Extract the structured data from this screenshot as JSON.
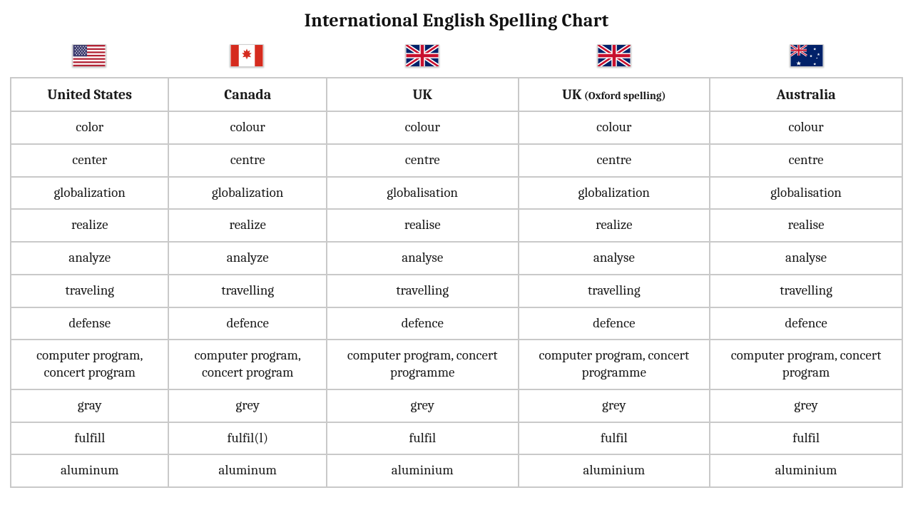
{
  "title": "International English Spelling Chart",
  "background_color": "#ffffff",
  "text_color": "#1a1a1a",
  "grid_color": "#c9c9c9",
  "font_family": "Cambria, Georgia, serif",
  "title_fontsize": 26,
  "header_fontsize": 20,
  "cell_fontsize": 19,
  "columns": [
    {
      "flag": "us",
      "header_main": "United States",
      "header_sub": "",
      "width_pct": 17.7
    },
    {
      "flag": "ca",
      "header_main": "Canada",
      "header_sub": "",
      "width_pct": 17.7
    },
    {
      "flag": "uk",
      "header_main": "UK",
      "header_sub": "",
      "width_pct": 21.5
    },
    {
      "flag": "uk",
      "header_main": "UK",
      "header_sub": " (Oxford spelling)",
      "width_pct": 21.5
    },
    {
      "flag": "au",
      "header_main": "Australia",
      "header_sub": "",
      "width_pct": 21.6
    }
  ],
  "rows": [
    [
      "color",
      "colour",
      "colour",
      "colour",
      "colour"
    ],
    [
      "center",
      "centre",
      "centre",
      "centre",
      "centre"
    ],
    [
      "globalization",
      "globalization",
      "globalisation",
      "globalization",
      "globalisation"
    ],
    [
      "realize",
      "realize",
      "realise",
      "realize",
      "realise"
    ],
    [
      "analyze",
      "analyze",
      "analyse",
      "analyse",
      "analyse"
    ],
    [
      "traveling",
      "travelling",
      "travelling",
      "travelling",
      "travelling"
    ],
    [
      "defense",
      "defence",
      "defence",
      "defence",
      "defence"
    ],
    [
      "computer program, concert program",
      "computer program, concert program",
      "computer program, concert programme",
      "computer program, concert programme",
      "computer program, concert program"
    ],
    [
      "gray",
      "grey",
      "grey",
      "grey",
      "grey"
    ],
    [
      "fulfill",
      "fulfil(l)",
      "fulfil",
      "fulfil",
      "fulfil"
    ],
    [
      "aluminum",
      "aluminum",
      "aluminium",
      "aluminium",
      "aluminium"
    ]
  ],
  "flag_svgs": {
    "us": "<svg viewBox='0 0 60 40' xmlns='http://www.w3.org/2000/svg'><rect width='60' height='40' fill='#b22234'/><g fill='#ffffff'><rect y='3.08' width='60' height='3.08'/><rect y='9.23' width='60' height='3.08'/><rect y='15.38' width='60' height='3.08'/><rect y='21.54' width='60' height='3.08'/><rect y='27.69' width='60' height='3.08'/><rect y='33.85' width='60' height='3.08'/></g><rect width='26' height='21.5' fill='#3c3b6e'/><g fill='#ffffff'><circle cx='4' cy='3' r='1'/><circle cx='9' cy='3' r='1'/><circle cx='14' cy='3' r='1'/><circle cx='19' cy='3' r='1'/><circle cx='24' cy='3' r='1'/><circle cx='6.5' cy='6' r='1'/><circle cx='11.5' cy='6' r='1'/><circle cx='16.5' cy='6' r='1'/><circle cx='21.5' cy='6' r='1'/><circle cx='4' cy='9' r='1'/><circle cx='9' cy='9' r='1'/><circle cx='14' cy='9' r='1'/><circle cx='19' cy='9' r='1'/><circle cx='24' cy='9' r='1'/><circle cx='6.5' cy='12' r='1'/><circle cx='11.5' cy='12' r='1'/><circle cx='16.5' cy='12' r='1'/><circle cx='21.5' cy='12' r='1'/><circle cx='4' cy='15' r='1'/><circle cx='9' cy='15' r='1'/><circle cx='14' cy='15' r='1'/><circle cx='19' cy='15' r='1'/><circle cx='24' cy='15' r='1'/><circle cx='6.5' cy='18' r='1'/><circle cx='11.5' cy='18' r='1'/><circle cx='16.5' cy='18' r='1'/><circle cx='21.5' cy='18' r='1'/></g></svg>",
    "ca": "<svg viewBox='0 0 60 40' xmlns='http://www.w3.org/2000/svg'><rect width='60' height='40' fill='#ffffff'/><rect width='15' height='40' fill='#d52b1e'/><rect x='45' width='15' height='40' fill='#d52b1e'/><path fill='#d52b1e' d='M30 7 L32 12 L36 10 L34.5 15 L39 15 L35 19 L38 23 L32 22 L31 27 L30 23 L29 27 L28 22 L22 23 L25 19 L21 15 L25.5 15 L24 10 L28 12 Z'/></svg>",
    "uk": "<svg viewBox='0 0 60 40' xmlns='http://www.w3.org/2000/svg'><rect width='60' height='40' fill='#012169'/><path d='M0 0 L60 40 M60 0 L0 40' stroke='#ffffff' stroke-width='8'/><path d='M0 0 L60 40 M60 0 L0 40' stroke='#c8102e' stroke-width='3.5'/><rect x='25' width='10' height='40' fill='#ffffff'/><rect y='15' width='60' height='10' fill='#ffffff'/><rect x='27' width='6' height='40' fill='#c8102e'/><rect y='17' width='60' height='6' fill='#c8102e'/></svg>",
    "au": "<svg viewBox='0 0 60 40' xmlns='http://www.w3.org/2000/svg'><rect width='60' height='40' fill='#012169'/><g><rect width='30' height='20' fill='#012169'/><path d='M0 0 L30 20 M30 0 L0 20' stroke='#ffffff' stroke-width='4'/><path d='M0 0 L30 20 M30 0 L0 20' stroke='#c8102e' stroke-width='1.8'/><rect x='12.5' width='5' height='20' fill='#ffffff'/><rect y='7.5' width='30' height='5' fill='#ffffff'/><rect x='13.5' width='3' height='20' fill='#c8102e'/><rect y='8.5' width='30' height='3' fill='#c8102e'/></g><g fill='#ffffff'><polygon points='15,30 16.2,33 19.5,33 17,35 18,38.2 15,36.3 12,38.2 13,35 10.5,33 13.8,33'/><polygon points='45,5 45.7,6.8 47.6,6.8 46.1,8 46.7,9.9 45,8.8 43.3,9.9 43.9,8 42.4,6.8 44.3,6.8'/><polygon points='52,15 52.7,16.8 54.6,16.8 53.1,18 53.7,19.9 52,18.8 50.3,19.9 50.9,18 49.4,16.8 51.3,16.8'/><polygon points='45,33 45.7,34.8 47.6,34.8 46.1,36 46.7,37.9 45,36.8 43.3,37.9 43.9,36 42.4,34.8 44.3,34.8'/><polygon points='38,18 38.7,19.8 40.6,19.8 39.1,21 39.7,22.9 38,21.8 36.3,22.9 36.9,21 35.4,19.8 37.3,19.8'/><polygon points='49,23 49.4,24 50.5,24 49.7,24.7 50,25.8 49,25.2 48,25.8 48.3,24.7 47.5,24 48.6,24'/></g></svg>"
  }
}
